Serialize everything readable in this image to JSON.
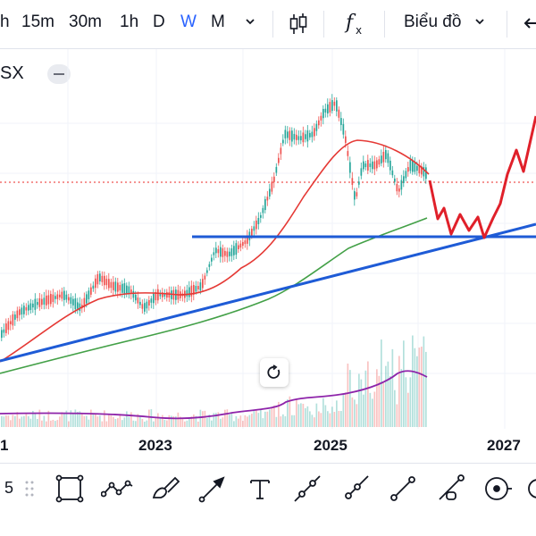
{
  "toolbar": {
    "timeframes": [
      {
        "label": "h",
        "active": false
      },
      {
        "label": "15m",
        "active": false
      },
      {
        "label": "30m",
        "active": false
      },
      {
        "label": "1h",
        "active": false
      },
      {
        "label": "D",
        "active": false
      },
      {
        "label": "W",
        "active": true
      },
      {
        "label": "M",
        "active": false
      }
    ],
    "chart_type_label": "Biểu đồ",
    "icons": [
      "chevron-down-icon",
      "candles-icon",
      "fx-icon",
      "undo-icon"
    ]
  },
  "symbol": {
    "label": "SX"
  },
  "xaxis": {
    "labels": [
      "1",
      "2023",
      "2025",
      "2027"
    ]
  },
  "bottom_tools": {
    "first_label": "5",
    "icons": [
      "drag-handle-icon",
      "rectangle-icon",
      "path-icon",
      "brush-icon",
      "arrow-icon",
      "text-icon",
      "trend-line-icon",
      "ray-icon",
      "line-icon",
      "extended-line-icon",
      "circle-target-icon"
    ]
  },
  "colors": {
    "accent": "#2962ff",
    "up": "#26a69a",
    "down": "#ef5350",
    "ma_red": "#e53935",
    "ma_green": "#43a047",
    "trend_blue": "#1e5bd6",
    "volume_purple": "#7b1fa2",
    "projection_red": "#e0202a"
  }
}
